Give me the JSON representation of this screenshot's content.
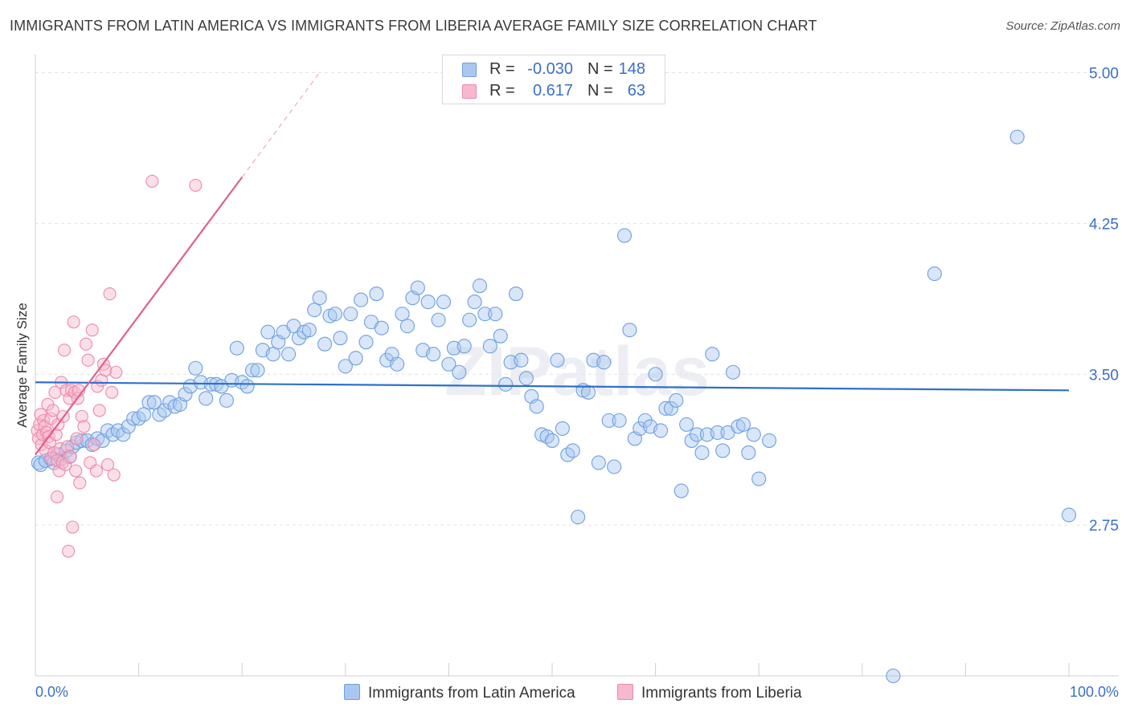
{
  "header": {
    "title": "IMMIGRANTS FROM LATIN AMERICA VS IMMIGRANTS FROM LIBERIA AVERAGE FAMILY SIZE CORRELATION CHART",
    "source": "Source: ZipAtlas.com"
  },
  "watermark": "ZIPatlas",
  "legend_top": {
    "rows": [
      {
        "r_label": "R =",
        "r_value": "-0.030",
        "n_label": "N =",
        "n_value": "148",
        "color": "#a9c7f0",
        "border": "#6f9fe0"
      },
      {
        "r_label": "R =",
        "r_value": "0.617",
        "n_label": "N =",
        "n_value": "63",
        "color": "#f7b8cc",
        "border": "#ec8aaa"
      }
    ]
  },
  "legend_bottom": [
    {
      "label": "Immigrants from Latin America",
      "color": "#a9c7f0",
      "border": "#6f9fe0"
    },
    {
      "label": "Immigrants from Liberia",
      "color": "#f7b8cc",
      "border": "#ec8aaa"
    }
  ],
  "x_axis_labels": {
    "min": "0.0%",
    "max": "100.0%"
  },
  "chart_data": {
    "type": "scatter",
    "title": "IMMIGRANTS FROM LATIN AMERICA VS IMMIGRANTS FROM LIBERIA AVERAGE FAMILY SIZE CORRELATION CHART",
    "xlabel": "",
    "ylabel": "Average Family Size",
    "xlim": [
      0,
      100
    ],
    "ylim": [
      2.0,
      5.05
    ],
    "y_ticks": [
      2.75,
      3.5,
      4.25,
      5.0
    ],
    "y_tick_labels": [
      "2.75",
      "3.50",
      "4.25",
      "5.00"
    ],
    "x_tick_labels": [
      "0.0%",
      "100.0%"
    ],
    "grid": true,
    "legend_placement": "top-center and bottom",
    "series": [
      {
        "name": "Immigrants from Latin America",
        "color": "#6f9fe0",
        "fill": "#a9c7f0",
        "R": -0.03,
        "N": 148,
        "trend": {
          "x": [
            0,
            100
          ],
          "y": [
            3.46,
            3.42
          ]
        },
        "points": [
          [
            0.3,
            3.06
          ],
          [
            0.5,
            3.05
          ],
          [
            1.0,
            3.07
          ],
          [
            1.5,
            3.08
          ],
          [
            1.8,
            3.06
          ],
          [
            2.2,
            3.1
          ],
          [
            2.5,
            3.08
          ],
          [
            3.0,
            3.12
          ],
          [
            3.3,
            3.09
          ],
          [
            3.6,
            3.14
          ],
          [
            4.0,
            3.16
          ],
          [
            4.5,
            3.17
          ],
          [
            5.0,
            3.17
          ],
          [
            5.5,
            3.15
          ],
          [
            6.0,
            3.18
          ],
          [
            6.5,
            3.17
          ],
          [
            7.0,
            3.22
          ],
          [
            7.5,
            3.2
          ],
          [
            8.0,
            3.22
          ],
          [
            8.5,
            3.2
          ],
          [
            9.0,
            3.24
          ],
          [
            9.5,
            3.28
          ],
          [
            10.0,
            3.28
          ],
          [
            10.5,
            3.3
          ],
          [
            11.0,
            3.36
          ],
          [
            11.5,
            3.36
          ],
          [
            12.0,
            3.3
          ],
          [
            12.5,
            3.32
          ],
          [
            13.0,
            3.36
          ],
          [
            13.5,
            3.34
          ],
          [
            14.0,
            3.35
          ],
          [
            14.5,
            3.4
          ],
          [
            15.0,
            3.44
          ],
          [
            15.5,
            3.53
          ],
          [
            16.0,
            3.46
          ],
          [
            16.5,
            3.38
          ],
          [
            17.0,
            3.45
          ],
          [
            17.5,
            3.45
          ],
          [
            18.0,
            3.44
          ],
          [
            18.5,
            3.37
          ],
          [
            19.0,
            3.47
          ],
          [
            19.5,
            3.63
          ],
          [
            20.0,
            3.46
          ],
          [
            20.5,
            3.44
          ],
          [
            21.0,
            3.52
          ],
          [
            21.5,
            3.52
          ],
          [
            22.0,
            3.62
          ],
          [
            22.5,
            3.71
          ],
          [
            23.0,
            3.6
          ],
          [
            23.5,
            3.66
          ],
          [
            24.0,
            3.71
          ],
          [
            24.5,
            3.6
          ],
          [
            25.0,
            3.74
          ],
          [
            25.5,
            3.68
          ],
          [
            26.0,
            3.71
          ],
          [
            26.5,
            3.72
          ],
          [
            27.0,
            3.82
          ],
          [
            27.5,
            3.88
          ],
          [
            28.0,
            3.65
          ],
          [
            28.5,
            3.79
          ],
          [
            29.0,
            3.8
          ],
          [
            29.5,
            3.68
          ],
          [
            30.0,
            3.54
          ],
          [
            30.5,
            3.8
          ],
          [
            31.0,
            3.58
          ],
          [
            31.5,
            3.87
          ],
          [
            32.0,
            3.66
          ],
          [
            32.5,
            3.76
          ],
          [
            33.0,
            3.9
          ],
          [
            33.5,
            3.73
          ],
          [
            34.0,
            3.57
          ],
          [
            34.5,
            3.6
          ],
          [
            35.0,
            3.55
          ],
          [
            35.5,
            3.8
          ],
          [
            36.0,
            3.74
          ],
          [
            36.5,
            3.88
          ],
          [
            37.0,
            3.93
          ],
          [
            37.5,
            3.62
          ],
          [
            38.0,
            3.86
          ],
          [
            38.5,
            3.6
          ],
          [
            39.0,
            3.77
          ],
          [
            39.5,
            3.86
          ],
          [
            40.0,
            3.55
          ],
          [
            40.5,
            3.63
          ],
          [
            41.0,
            3.51
          ],
          [
            41.5,
            3.64
          ],
          [
            42.0,
            3.77
          ],
          [
            42.5,
            3.86
          ],
          [
            43.0,
            3.94
          ],
          [
            43.5,
            3.8
          ],
          [
            44.0,
            3.64
          ],
          [
            44.5,
            3.8
          ],
          [
            45.0,
            3.69
          ],
          [
            45.5,
            3.45
          ],
          [
            46.0,
            3.56
          ],
          [
            46.5,
            3.9
          ],
          [
            47.0,
            3.57
          ],
          [
            47.5,
            3.48
          ],
          [
            48.0,
            3.39
          ],
          [
            48.5,
            3.34
          ],
          [
            49.0,
            3.2
          ],
          [
            49.5,
            3.19
          ],
          [
            50.0,
            3.17
          ],
          [
            50.5,
            3.57
          ],
          [
            51.0,
            3.23
          ],
          [
            51.5,
            3.1
          ],
          [
            52.0,
            3.12
          ],
          [
            52.5,
            2.79
          ],
          [
            53.0,
            3.42
          ],
          [
            53.5,
            3.41
          ],
          [
            54.0,
            3.57
          ],
          [
            54.5,
            3.06
          ],
          [
            55.0,
            3.56
          ],
          [
            55.5,
            3.27
          ],
          [
            56.0,
            3.04
          ],
          [
            56.5,
            3.27
          ],
          [
            57.0,
            4.19
          ],
          [
            57.5,
            3.72
          ],
          [
            58.0,
            3.18
          ],
          [
            58.5,
            3.23
          ],
          [
            59.0,
            3.27
          ],
          [
            59.5,
            3.24
          ],
          [
            60.0,
            3.5
          ],
          [
            60.5,
            3.22
          ],
          [
            61.0,
            3.33
          ],
          [
            61.5,
            3.33
          ],
          [
            62.0,
            3.37
          ],
          [
            62.5,
            2.92
          ],
          [
            63.0,
            3.25
          ],
          [
            63.5,
            3.17
          ],
          [
            64.0,
            3.2
          ],
          [
            64.5,
            3.11
          ],
          [
            65.0,
            3.2
          ],
          [
            65.5,
            3.6
          ],
          [
            66.0,
            3.21
          ],
          [
            66.5,
            3.12
          ],
          [
            67.0,
            3.21
          ],
          [
            67.5,
            3.51
          ],
          [
            68.0,
            3.24
          ],
          [
            68.5,
            3.25
          ],
          [
            69.0,
            3.11
          ],
          [
            69.5,
            3.2
          ],
          [
            70.0,
            2.98
          ],
          [
            71.0,
            3.17
          ],
          [
            83.0,
            2.0
          ],
          [
            87.0,
            4.0
          ],
          [
            95.0,
            4.68
          ],
          [
            100.0,
            2.8
          ]
        ]
      },
      {
        "name": "Immigrants from Liberia",
        "color": "#ec8aaa",
        "fill": "#f7b8cc",
        "R": 0.617,
        "N": 63,
        "trend": {
          "x": [
            0,
            20
          ],
          "y": [
            3.1,
            4.48
          ]
        },
        "trend_dashed": {
          "x": [
            20,
            27.5
          ],
          "y": [
            4.48,
            5.0
          ]
        },
        "points": [
          [
            0.2,
            3.22
          ],
          [
            0.3,
            3.18
          ],
          [
            0.4,
            3.25
          ],
          [
            0.5,
            3.3
          ],
          [
            0.6,
            3.15
          ],
          [
            0.7,
            3.2
          ],
          [
            0.8,
            3.27
          ],
          [
            0.9,
            3.24
          ],
          [
            1.0,
            3.12
          ],
          [
            1.1,
            3.21
          ],
          [
            1.2,
            3.35
          ],
          [
            1.3,
            3.19
          ],
          [
            1.4,
            3.16
          ],
          [
            1.5,
            3.28
          ],
          [
            1.6,
            3.08
          ],
          [
            1.7,
            3.32
          ],
          [
            1.8,
            3.11
          ],
          [
            1.9,
            3.41
          ],
          [
            2.0,
            3.2
          ],
          [
            2.1,
            3.07
          ],
          [
            2.2,
            3.25
          ],
          [
            2.3,
            3.02
          ],
          [
            2.4,
            3.13
          ],
          [
            2.5,
            3.46
          ],
          [
            2.6,
            3.06
          ],
          [
            2.7,
            3.29
          ],
          [
            2.8,
            3.62
          ],
          [
            2.9,
            3.05
          ],
          [
            3.0,
            3.42
          ],
          [
            3.1,
            3.14
          ],
          [
            3.2,
            2.62
          ],
          [
            3.3,
            3.38
          ],
          [
            3.4,
            3.09
          ],
          [
            3.5,
            3.42
          ],
          [
            3.6,
            2.74
          ],
          [
            3.7,
            3.76
          ],
          [
            3.8,
            3.41
          ],
          [
            3.9,
            3.02
          ],
          [
            4.0,
            3.18
          ],
          [
            4.1,
            3.38
          ],
          [
            4.2,
            3.42
          ],
          [
            4.3,
            2.96
          ],
          [
            4.5,
            3.29
          ],
          [
            4.7,
            3.24
          ],
          [
            4.9,
            3.65
          ],
          [
            5.1,
            3.57
          ],
          [
            5.3,
            3.06
          ],
          [
            5.5,
            3.72
          ],
          [
            5.7,
            3.15
          ],
          [
            5.9,
            3.02
          ],
          [
            6.0,
            3.44
          ],
          [
            6.2,
            3.32
          ],
          [
            6.4,
            3.47
          ],
          [
            6.6,
            3.55
          ],
          [
            6.8,
            3.52
          ],
          [
            7.0,
            3.05
          ],
          [
            7.2,
            3.9
          ],
          [
            7.4,
            3.41
          ],
          [
            7.6,
            3.0
          ],
          [
            7.8,
            3.51
          ],
          [
            11.3,
            4.46
          ],
          [
            15.5,
            4.44
          ],
          [
            2.1,
            2.89
          ]
        ]
      }
    ]
  }
}
